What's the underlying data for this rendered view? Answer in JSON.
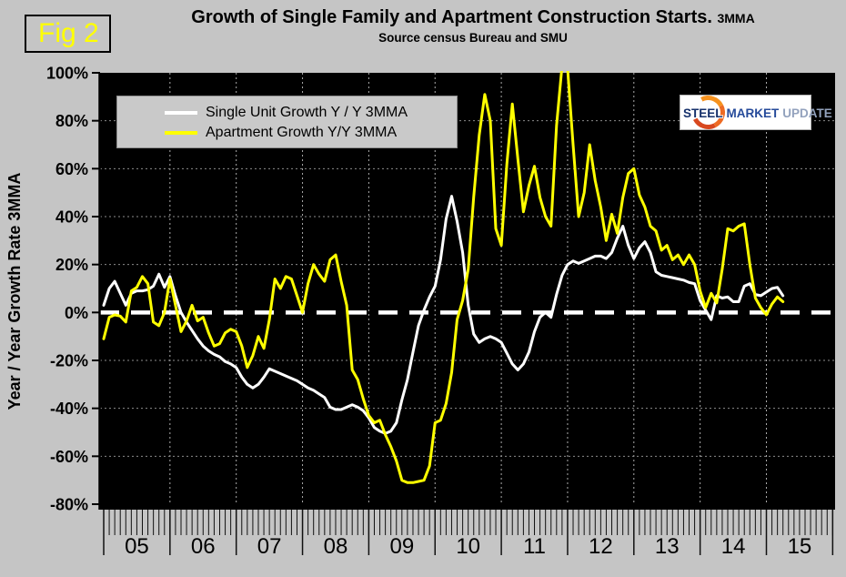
{
  "figure_label": "Fig 2",
  "header": {
    "title": "Growth of Single Family and Apartment Construction Starts.",
    "title_suffix": "3MMA",
    "subtitle": "Source census Bureau and SMU"
  },
  "logo": {
    "word1": "STEEL",
    "word2": "MARKET",
    "word3": "UPDATE"
  },
  "legend": [
    {
      "label": "Single Unit Growth Y / Y 3MMA",
      "color": "#ffffff"
    },
    {
      "label": "Apartment Growth Y/Y 3MMA",
      "color": "#ffff00"
    }
  ],
  "colors": {
    "page_bg": "#c5c5c5",
    "plot_bg": "#000000",
    "grid_h": "#8c8c8c",
    "grid_v": "#ababab",
    "zero_line": "#ffffff",
    "axis": "#000000",
    "single_unit_line": "#ffffff",
    "apartment_line": "#ffff00",
    "fig_label": "#ffff00"
  },
  "chart_data": {
    "type": "line",
    "title": "Growth of Single Family and Apartment Construction Starts. 3MMA",
    "subtitle": "Source census Bureau and SMU",
    "xlabel": "",
    "ylabel": "Year / Year Growth Rate 3MMA",
    "ylim": [
      -80,
      100
    ],
    "y_tick_step": 20,
    "y_tick_labels": [
      "100%",
      "80%",
      "60%",
      "40%",
      "20%",
      "0%",
      "-20%",
      "-40%",
      "-60%",
      "-80%"
    ],
    "x_year_labels": [
      "05",
      "06",
      "07",
      "08",
      "09",
      "10",
      "11",
      "12",
      "13",
      "14",
      "15"
    ],
    "x_start": "2005-01",
    "points_per_month": 1,
    "grid": "dotted",
    "zero_line_style": "thick white dashed",
    "legend_position": "top-left inside plot",
    "note": "Values are percent Y/Y growth, 3-month moving average, monthly Jan-2005 to Apr-2015; apartment spike Dec-2011/Jan-2012 exceeds +100% and is clipped at plot top.",
    "series": [
      {
        "name": "Single Unit Growth Y / Y 3MMA",
        "color": "#ffffff",
        "values": [
          3,
          10,
          13,
          8,
          3,
          8,
          9,
          9,
          9.5,
          11,
          16,
          10.5,
          15,
          7,
          0,
          -4,
          -7.5,
          -11,
          -14,
          -16,
          -17.5,
          -18.5,
          -20.5,
          -21.5,
          -23,
          -27,
          -30,
          -31.5,
          -30,
          -27,
          -23.5,
          -24.5,
          -25.5,
          -26.5,
          -27.5,
          -28.5,
          -30,
          -31.5,
          -32.5,
          -34,
          -35.5,
          -39.5,
          -40.5,
          -40.5,
          -39.5,
          -38.5,
          -39.5,
          -41,
          -44,
          -48,
          -49.5,
          -50.5,
          -49.5,
          -46,
          -36.5,
          -28,
          -16.5,
          -5.5,
          1,
          6.5,
          11,
          22,
          39,
          48.5,
          38,
          25,
          3,
          -9,
          -12.5,
          -11,
          -10,
          -11,
          -12.5,
          -17,
          -21.5,
          -24,
          -21.5,
          -16.5,
          -8,
          -2,
          0,
          -2,
          7.5,
          15.5,
          20,
          21.5,
          20.5,
          21.5,
          22.5,
          23.5,
          23.5,
          22.5,
          25,
          31,
          36,
          28,
          22.5,
          27,
          29.5,
          25,
          17,
          15.5,
          15,
          14.5,
          14,
          13.5,
          12.5,
          12,
          5,
          1,
          -3,
          7,
          6,
          6.5,
          4.5,
          4.5,
          11,
          12,
          7.5,
          7,
          8.5,
          10,
          10.5,
          7
        ]
      },
      {
        "name": "Apartment Growth Y/Y 3MMA",
        "color": "#ffff00",
        "values": [
          -11,
          -2,
          -1,
          -1.5,
          -4,
          9,
          10.5,
          15,
          12,
          -4,
          -5.5,
          0,
          14,
          3,
          -8,
          -3.5,
          3,
          -3.5,
          -2,
          -8.5,
          -14,
          -13,
          -8.5,
          -7,
          -8,
          -14,
          -23,
          -18,
          -10,
          -15,
          -3,
          14,
          10,
          15,
          14,
          7,
          0,
          12,
          20,
          16,
          13,
          22,
          24,
          13,
          3,
          -24,
          -28,
          -36,
          -43,
          -46,
          -45,
          -51,
          -56,
          -62,
          -70,
          -71,
          -71,
          -70.5,
          -70,
          -64,
          -46,
          -45,
          -38,
          -25,
          -3,
          5,
          18,
          48,
          74,
          91,
          80,
          35,
          28,
          62,
          87,
          64,
          42,
          53,
          61,
          48,
          40,
          36,
          78,
          103,
          102,
          70,
          40,
          50,
          70,
          55,
          44,
          30,
          41,
          33,
          48,
          58,
          60,
          49,
          44,
          36,
          34,
          26,
          28,
          22,
          24,
          20,
          24,
          20,
          9,
          2,
          8,
          4,
          18,
          35,
          34,
          36,
          37,
          20,
          6,
          2,
          -1,
          3.5,
          6.5,
          4.5
        ]
      }
    ]
  }
}
